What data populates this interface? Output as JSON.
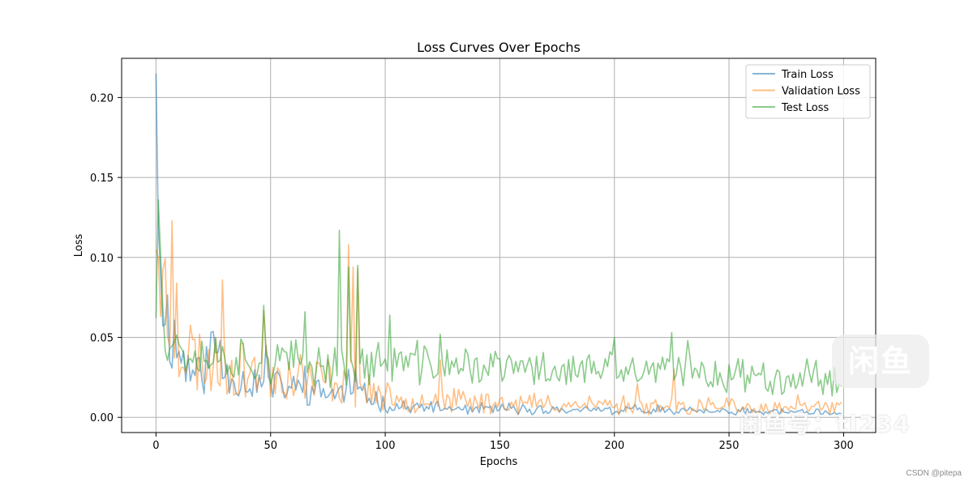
{
  "chart_data": {
    "type": "line",
    "title": "Loss Curves Over Epochs",
    "xlabel": "Epochs",
    "ylabel": "Loss",
    "xlim": [
      -15,
      314
    ],
    "ylim": [
      -0.0095,
      0.2245
    ],
    "xticks": [
      0,
      50,
      100,
      150,
      200,
      250,
      300
    ],
    "xtick_labels": [
      "0",
      "50",
      "100",
      "150",
      "200",
      "250",
      "300"
    ],
    "yticks": [
      0.0,
      0.05,
      0.1,
      0.15,
      0.2
    ],
    "ytick_labels": [
      "0.00",
      "0.05",
      "0.10",
      "0.15",
      "0.20"
    ],
    "grid": true,
    "legend_position": "top-right",
    "n_points": 300,
    "series": [
      {
        "name": "Train Loss",
        "color": "#1f77b4",
        "alpha": 0.55,
        "points": [
          [
            0,
            0.215
          ],
          [
            1,
            0.12
          ],
          [
            2,
            0.09
          ],
          [
            3,
            0.078
          ],
          [
            5,
            0.062
          ],
          [
            8,
            0.048
          ],
          [
            10,
            0.04
          ],
          [
            15,
            0.03
          ],
          [
            20,
            0.026
          ],
          [
            25,
            0.045
          ],
          [
            30,
            0.028
          ],
          [
            40,
            0.022
          ],
          [
            50,
            0.02
          ],
          [
            60,
            0.018
          ],
          [
            65,
            0.017
          ],
          [
            70,
            0.016
          ],
          [
            80,
            0.015
          ],
          [
            90,
            0.014
          ],
          [
            95,
            0.012
          ],
          [
            100,
            0.008
          ],
          [
            110,
            0.006
          ],
          [
            120,
            0.006
          ],
          [
            130,
            0.005
          ],
          [
            150,
            0.005
          ],
          [
            200,
            0.004
          ],
          [
            225,
            0.006
          ],
          [
            230,
            0.004
          ],
          [
            250,
            0.003
          ],
          [
            270,
            0.003
          ],
          [
            299,
            0.002
          ]
        ],
        "noise": 0.45,
        "noise_floor": 0.002,
        "seed": 11,
        "spikes": [
          [
            28,
            0.048
          ],
          [
            48,
            0.045
          ],
          [
            65,
            0.032
          ],
          [
            84,
            0.03
          ],
          [
            87,
            0.03
          ]
        ]
      },
      {
        "name": "Validation Loss",
        "color": "#ff7f0e",
        "alpha": 0.5,
        "points": [
          [
            0,
            0.105
          ],
          [
            1,
            0.1
          ],
          [
            3,
            0.085
          ],
          [
            5,
            0.07
          ],
          [
            8,
            0.055
          ],
          [
            10,
            0.048
          ],
          [
            15,
            0.04
          ],
          [
            20,
            0.035
          ],
          [
            30,
            0.032
          ],
          [
            40,
            0.03
          ],
          [
            50,
            0.028
          ],
          [
            60,
            0.026
          ],
          [
            70,
            0.024
          ],
          [
            80,
            0.023
          ],
          [
            90,
            0.02
          ],
          [
            95,
            0.016
          ],
          [
            100,
            0.012
          ],
          [
            110,
            0.011
          ],
          [
            120,
            0.012
          ],
          [
            130,
            0.01
          ],
          [
            150,
            0.009
          ],
          [
            200,
            0.008
          ],
          [
            230,
            0.007
          ],
          [
            260,
            0.006
          ],
          [
            299,
            0.006
          ]
        ],
        "noise": 0.55,
        "noise_floor": 0.003,
        "seed": 23,
        "spikes": [
          [
            7,
            0.123
          ],
          [
            9,
            0.084
          ],
          [
            29,
            0.086
          ],
          [
            47,
            0.067
          ],
          [
            84,
            0.108
          ],
          [
            86,
            0.094
          ],
          [
            88,
            0.093
          ],
          [
            124,
            0.036
          ],
          [
            210,
            0.021
          ],
          [
            226,
            0.03
          ],
          [
            280,
            0.014
          ]
        ]
      },
      {
        "name": "Test Loss",
        "color": "#2ca02c",
        "alpha": 0.55,
        "points": [
          [
            0,
            0.062
          ],
          [
            1,
            0.136
          ],
          [
            2,
            0.102
          ],
          [
            4,
            0.06
          ],
          [
            6,
            0.05
          ],
          [
            10,
            0.045
          ],
          [
            15,
            0.04
          ],
          [
            20,
            0.04
          ],
          [
            30,
            0.038
          ],
          [
            40,
            0.036
          ],
          [
            50,
            0.035
          ],
          [
            60,
            0.034
          ],
          [
            70,
            0.033
          ],
          [
            80,
            0.033
          ],
          [
            90,
            0.032
          ],
          [
            100,
            0.035
          ],
          [
            110,
            0.034
          ],
          [
            120,
            0.033
          ],
          [
            130,
            0.032
          ],
          [
            150,
            0.031
          ],
          [
            170,
            0.03
          ],
          [
            200,
            0.029
          ],
          [
            230,
            0.028
          ],
          [
            250,
            0.027
          ],
          [
            270,
            0.026
          ],
          [
            299,
            0.025
          ]
        ],
        "noise": 0.32,
        "noise_floor": 0.004,
        "seed": 37,
        "spikes": [
          [
            47,
            0.07
          ],
          [
            65,
            0.066
          ],
          [
            80,
            0.117
          ],
          [
            84,
            0.094
          ],
          [
            88,
            0.095
          ],
          [
            102,
            0.064
          ],
          [
            124,
            0.052
          ],
          [
            200,
            0.05
          ],
          [
            225,
            0.053
          ],
          [
            232,
            0.048
          ]
        ]
      }
    ]
  },
  "overlay": {
    "watermark_text": "CSDN @pitepa",
    "badge_text": "闲鱼",
    "badge_id_text": "闲鱼号：tl234"
  }
}
